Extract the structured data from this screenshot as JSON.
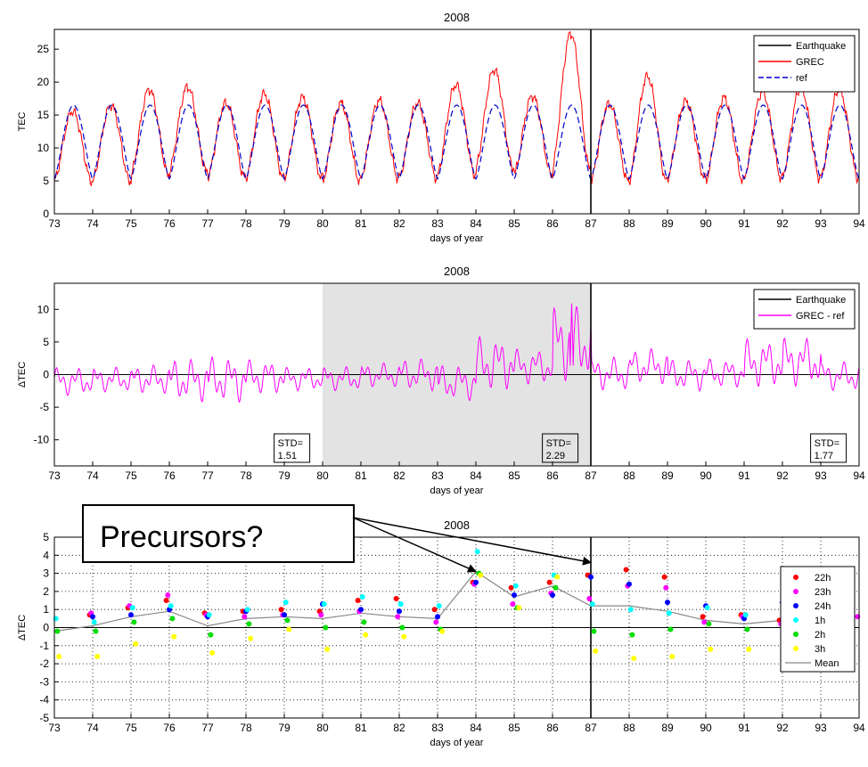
{
  "colors": {
    "earthquake": "#000000",
    "grec": "#ff0000",
    "ref": "#0000cc",
    "diff": "#ff00ff",
    "shade": "#e3e3e3",
    "h22": "#ff0000",
    "h23": "#ff00ff",
    "h24": "#0000ff",
    "h1": "#00ffff",
    "h2": "#00dd00",
    "h3": "#ffff00",
    "mean": "#888888"
  },
  "chart_data": [
    {
      "type": "line",
      "title": "2008",
      "xlabel": "days of year",
      "ylabel": "TEC",
      "xlim": [
        73,
        94
      ],
      "ylim": [
        0,
        28
      ],
      "xticks": [
        73,
        74,
        75,
        76,
        77,
        78,
        79,
        80,
        81,
        82,
        83,
        84,
        85,
        86,
        87,
        88,
        89,
        90,
        91,
        92,
        93,
        94
      ],
      "yticks": [
        0,
        5,
        10,
        15,
        20,
        25
      ],
      "earthquake_day": 87,
      "legend": {
        "position": "top-right",
        "entries": [
          "Earthquake",
          "GREC",
          "ref"
        ]
      },
      "ref_model": {
        "baseline": 5.3,
        "amplitude": 11.3,
        "peak_offset": 0.5
      },
      "series": [
        {
          "name": "ref",
          "daily_peak": [
            16.5,
            16.5,
            16.5,
            16.5,
            16.5,
            16.5,
            16.5,
            16.5,
            16.5,
            16.5,
            16.5,
            16.5,
            16.5,
            16.5,
            16.5,
            16.5,
            16.5,
            16.5,
            16.5,
            16.5,
            16.5
          ],
          "daily_min": [
            5.3,
            5.3,
            5.3,
            5.3,
            5.3,
            5.3,
            5.3,
            5.3,
            5.3,
            5.3,
            5.3,
            5.3,
            5.3,
            5.3,
            5.3,
            5.3,
            5.3,
            5.3,
            5.3,
            5.3,
            5.3
          ]
        },
        {
          "name": "GREC",
          "daily_peak": [
            15.6,
            16.5,
            18.9,
            19.3,
            16.8,
            18.2,
            17.7,
            16.8,
            17.2,
            16.8,
            19.6,
            21.9,
            17.9,
            27.4,
            16.7,
            20.9,
            17.1,
            17.6,
            18.5,
            19.2,
            18.9
          ],
          "daily_min": [
            5.0,
            5.0,
            6.0,
            6.5,
            5.5,
            5.5,
            5.5,
            5.0,
            5.5,
            5.5,
            6.0,
            7.0,
            6.0,
            7.0,
            5.0,
            5.0,
            5.5,
            5.0,
            5.5,
            5.5,
            5.5
          ]
        }
      ]
    },
    {
      "type": "line",
      "title": "2008",
      "xlabel": "days of year",
      "ylabel": "ΔTEC",
      "xlim": [
        73,
        94
      ],
      "ylim": [
        -14,
        14
      ],
      "xticks": [
        73,
        74,
        75,
        76,
        77,
        78,
        79,
        80,
        81,
        82,
        83,
        84,
        85,
        86,
        87,
        88,
        89,
        90,
        91,
        92,
        93,
        94
      ],
      "yticks": [
        -10,
        -5,
        0,
        5,
        10
      ],
      "earthquake_day": 87,
      "shaded_range": [
        80,
        87
      ],
      "legend": {
        "position": "top-right",
        "entries": [
          "Earthquake",
          "GREC - ref"
        ]
      },
      "series": [
        {
          "name": "GREC - ref",
          "daily_max": [
            1.2,
            1.2,
            1.5,
            2.5,
            2.8,
            2.3,
            1.2,
            1.3,
            1.8,
            2.5,
            1.5,
            5.8,
            4.0,
            10.9,
            2.7,
            4.0,
            2.4,
            2.4,
            5.5,
            5.9,
            2.0
          ],
          "daily_min": [
            -3.2,
            -2.7,
            -3.0,
            -4.2,
            -4.3,
            -3.0,
            -2.5,
            -2.5,
            -2.0,
            -2.5,
            -4.0,
            -2.5,
            -1.5,
            -1.0,
            -2.5,
            -1.5,
            -2.5,
            -2.0,
            -2.0,
            -1.8,
            -2.5
          ]
        }
      ],
      "annotations": [
        {
          "text_line1": "STD=",
          "text_line2": "1.51",
          "x": 79.2
        },
        {
          "text_line1": "STD=",
          "text_line2": "2.29",
          "x": 86.2
        },
        {
          "text_line1": "STD=",
          "text_line2": "1.77",
          "x": 93.2
        }
      ]
    },
    {
      "type": "scatter",
      "title": "2008",
      "xlabel": "days of year",
      "ylabel": "ΔTEC",
      "xlim": [
        73,
        94
      ],
      "ylim": [
        -5,
        5
      ],
      "xticks": [
        73,
        74,
        75,
        76,
        77,
        78,
        79,
        80,
        81,
        82,
        83,
        84,
        85,
        86,
        87,
        88,
        89,
        90,
        91,
        92,
        93,
        94
      ],
      "yticks": [
        -5,
        -4,
        -3,
        -2,
        -1,
        0,
        1,
        2,
        3,
        4,
        5
      ],
      "grid": true,
      "earthquake_day": 87,
      "legend": {
        "position": "right",
        "entries": [
          "22h",
          "23h",
          "24h",
          "1h",
          "2h",
          "3h",
          "Mean"
        ]
      },
      "hour_offsets": {
        "22h": -0.08,
        "23h": -0.04,
        "24h": 0.0,
        "1h": 0.04,
        "2h": 0.08,
        "3h": 0.12
      },
      "series": [
        {
          "name": "22h",
          "x": [
            74,
            75,
            76,
            77,
            78,
            79,
            80,
            81,
            82,
            83,
            84,
            85,
            86,
            87,
            88,
            89,
            90,
            91,
            92,
            93
          ],
          "y": [
            0.7,
            1.1,
            1.5,
            0.8,
            0.9,
            1.0,
            0.9,
            1.5,
            1.6,
            1.0,
            2.5,
            2.2,
            2.5,
            2.9,
            3.2,
            2.8,
            0.6,
            0.7,
            0.4,
            1.0
          ]
        },
        {
          "name": "23h",
          "x": [
            74,
            75,
            76,
            77,
            78,
            79,
            80,
            81,
            82,
            83,
            84,
            85,
            86,
            87,
            88,
            89,
            90,
            91,
            92,
            93,
            94
          ],
          "y": [
            0.8,
            1.2,
            1.8,
            0.7,
            0.6,
            0.7,
            0.7,
            0.9,
            0.6,
            0.3,
            2.4,
            1.3,
            1.9,
            1.6,
            2.3,
            2.2,
            0.3,
            0.6,
            0.2,
            0.9,
            0.6
          ]
        },
        {
          "name": "24h",
          "x": [
            74,
            75,
            76,
            77,
            78,
            79,
            80,
            81,
            82,
            83,
            84,
            85,
            86,
            87,
            88,
            89,
            90,
            91,
            92,
            93
          ],
          "y": [
            0.6,
            0.7,
            1.0,
            0.6,
            0.9,
            0.7,
            1.3,
            1.0,
            0.9,
            0.6,
            2.5,
            1.8,
            1.8,
            2.8,
            2.4,
            1.4,
            1.2,
            0.5,
            1.4,
            1.5
          ]
        },
        {
          "name": "1h",
          "x": [
            73,
            74,
            75,
            76,
            77,
            78,
            79,
            80,
            81,
            82,
            83,
            84,
            85,
            86,
            87,
            88,
            89,
            90,
            91,
            92
          ],
          "y": [
            0.5,
            0.3,
            1.1,
            1.2,
            0.7,
            1.0,
            1.4,
            1.3,
            1.7,
            1.3,
            1.2,
            4.2,
            2.3,
            2.9,
            1.3,
            1.0,
            0.8,
            1.1,
            0.7,
            0.3
          ]
        },
        {
          "name": "2h",
          "x": [
            73,
            74,
            75,
            76,
            77,
            78,
            79,
            80,
            81,
            82,
            83,
            84,
            85,
            86,
            87,
            88,
            89,
            90,
            91,
            92
          ],
          "y": [
            -0.2,
            -0.2,
            0.3,
            0.5,
            -0.4,
            0.2,
            0.4,
            0.0,
            0.3,
            0.0,
            -0.1,
            3.0,
            1.1,
            2.2,
            -0.2,
            -0.4,
            -0.1,
            0.2,
            -0.1,
            0.0
          ]
        },
        {
          "name": "3h",
          "x": [
            73,
            74,
            75,
            76,
            77,
            78,
            79,
            80,
            81,
            82,
            83,
            84,
            85,
            86,
            87,
            88,
            89,
            90,
            91
          ],
          "y": [
            -1.6,
            -1.6,
            -0.9,
            -0.5,
            -1.4,
            -0.6,
            -0.1,
            -1.2,
            -0.4,
            -0.5,
            -0.2,
            2.9,
            1.1,
            2.8,
            -1.3,
            -1.7,
            -1.6,
            -1.2,
            -1.2
          ]
        },
        {
          "name": "Mean",
          "x": [
            73,
            74,
            75,
            76,
            77,
            78,
            79,
            80,
            81,
            82,
            83,
            84,
            85,
            86,
            87,
            88,
            89,
            90,
            91,
            92
          ],
          "y": [
            -0.2,
            0.1,
            0.6,
            0.9,
            0.1,
            0.5,
            0.6,
            0.5,
            0.8,
            0.6,
            0.5,
            3.1,
            1.7,
            2.3,
            1.2,
            1.2,
            0.9,
            0.4,
            0.2,
            0.4
          ]
        }
      ],
      "callout": {
        "text": "Precursors?",
        "arrow_targets": [
          {
            "x": 84,
            "y": 3.1
          },
          {
            "x": 87,
            "y": 3.6
          }
        ]
      }
    }
  ]
}
